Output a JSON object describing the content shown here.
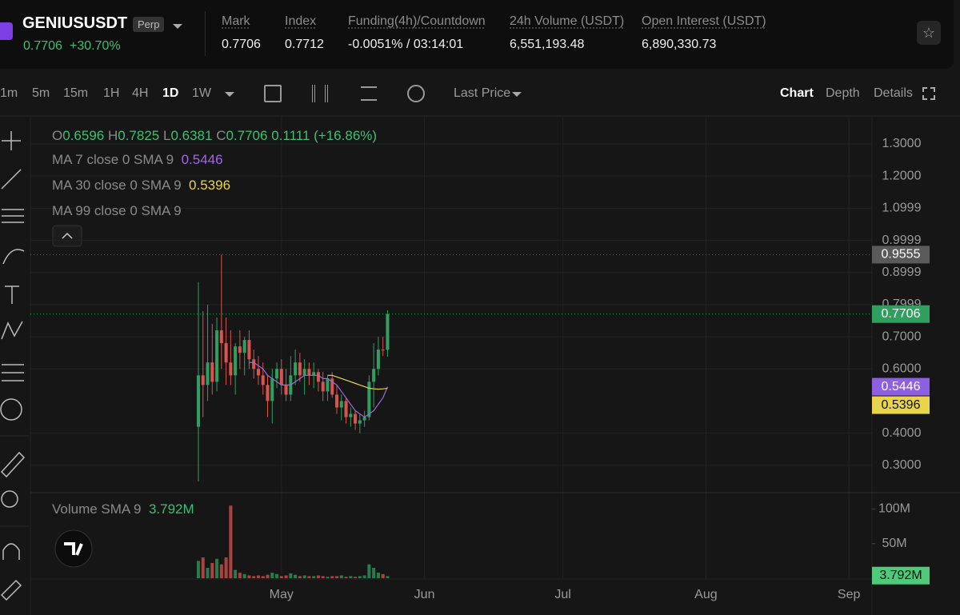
{
  "header": {
    "symbol": "GENIUSUSDT",
    "badge": "Perp",
    "price": "0.7706",
    "change": "+30.70%",
    "stats": [
      {
        "label": "Mark",
        "value": "0.7706"
      },
      {
        "label": "Index",
        "value": "0.7712"
      },
      {
        "label": "Funding(4h)/Countdown",
        "value": "-0.0051% / 03:14:01"
      },
      {
        "label": "24h Volume (USDT)",
        "value": "6,551,193.48"
      },
      {
        "label": "Open Interest (USDT)",
        "value": "6,890,330.73"
      }
    ]
  },
  "toolbar": {
    "intervals": [
      "1m",
      "5m",
      "15m",
      "1H",
      "4H",
      "1D",
      "1W"
    ],
    "price_type": "Last Price",
    "tabs": [
      "Chart",
      "Depth",
      "Details"
    ]
  },
  "legend": {
    "ohlc": [
      {
        "label": "O",
        "value": "0.6596"
      },
      {
        "label": "H",
        "value": "0.7825"
      },
      {
        "label": "L",
        "value": "0.6381"
      },
      {
        "label": "C",
        "value": "0.7706"
      }
    ],
    "change": "0.1111 (+16.86%)",
    "ma": [
      "MA 7 close 0 SMA 9",
      "MA 30 close 0 SMA 9",
      "MA 99 close 0 SMA 9"
    ],
    "volume": "Volume SMA 9"
  },
  "chart_data": {
    "type": "candlestick",
    "up_color": "#2f9e5f",
    "down_color": "#d9534f",
    "open": [
      0.42,
      0.58,
      0.55,
      0.62,
      0.56,
      0.72,
      0.68,
      0.62,
      0.58,
      0.67,
      0.65,
      0.69,
      0.63,
      0.6,
      0.58,
      0.55,
      0.5,
      0.57,
      0.6,
      0.55,
      0.52,
      0.58,
      0.62,
      0.58,
      0.6,
      0.58,
      0.59,
      0.56,
      0.53,
      0.57,
      0.52,
      0.48,
      0.5,
      0.45,
      0.46,
      0.43,
      0.44,
      0.45,
      0.56,
      0.6,
      0.66,
      0.6596
    ],
    "high": [
      0.87,
      0.78,
      0.8,
      0.74,
      0.76,
      0.9555,
      0.76,
      0.72,
      0.68,
      0.72,
      0.7,
      0.72,
      0.66,
      0.64,
      0.62,
      0.58,
      0.6,
      0.62,
      0.63,
      0.6,
      0.64,
      0.66,
      0.65,
      0.63,
      0.62,
      0.62,
      0.6,
      0.59,
      0.58,
      0.59,
      0.55,
      0.52,
      0.51,
      0.48,
      0.47,
      0.46,
      0.47,
      0.58,
      0.68,
      0.7,
      0.7,
      0.7825
    ],
    "low": [
      0.25,
      0.45,
      0.5,
      0.52,
      0.53,
      0.6,
      0.55,
      0.55,
      0.52,
      0.6,
      0.58,
      0.6,
      0.57,
      0.55,
      0.52,
      0.45,
      0.43,
      0.54,
      0.52,
      0.5,
      0.5,
      0.55,
      0.56,
      0.52,
      0.55,
      0.54,
      0.53,
      0.5,
      0.5,
      0.51,
      0.46,
      0.44,
      0.43,
      0.42,
      0.41,
      0.4,
      0.42,
      0.44,
      0.48,
      0.58,
      0.64,
      0.6381
    ],
    "close": [
      0.58,
      0.55,
      0.62,
      0.56,
      0.72,
      0.68,
      0.62,
      0.58,
      0.67,
      0.65,
      0.69,
      0.63,
      0.6,
      0.58,
      0.55,
      0.5,
      0.57,
      0.6,
      0.55,
      0.52,
      0.58,
      0.62,
      0.58,
      0.6,
      0.58,
      0.59,
      0.56,
      0.53,
      0.57,
      0.52,
      0.48,
      0.5,
      0.45,
      0.46,
      0.43,
      0.44,
      0.45,
      0.56,
      0.6,
      0.66,
      0.6596,
      0.7706
    ],
    "volume": [
      25000000,
      30000000,
      15000000,
      22000000,
      28000000,
      20000000,
      30000000,
      105000000,
      12000000,
      8000000,
      6000000,
      4000000,
      3000000,
      4000000,
      3000000,
      5000000,
      8000000,
      6000000,
      3000000,
      4000000,
      7000000,
      5000000,
      3000000,
      4000000,
      3000000,
      3000000,
      4000000,
      3000000,
      2000000,
      3000000,
      3000000,
      4000000,
      2000000,
      3000000,
      2000000,
      3000000,
      4000000,
      20000000,
      15000000,
      8000000,
      6000000,
      3000000
    ],
    "series": [
      {
        "name": "MA 7",
        "color": "#9b6bdf",
        "values": [
          null,
          null,
          null,
          null,
          null,
          null,
          null,
          null,
          null,
          null,
          null,
          0.62,
          0.62,
          0.61,
          0.6,
          0.58,
          0.57,
          0.56,
          0.55,
          0.55,
          0.55,
          0.56,
          0.57,
          0.58,
          0.58,
          0.58,
          0.58,
          0.57,
          0.57,
          0.56,
          0.55,
          0.53,
          0.51,
          0.49,
          0.47,
          0.46,
          0.45,
          0.46,
          0.47,
          0.49,
          0.51,
          0.5446
        ]
      },
      {
        "name": "MA 30",
        "color": "#e8d44d",
        "values": [
          null,
          null,
          null,
          null,
          null,
          null,
          null,
          null,
          null,
          null,
          null,
          null,
          null,
          null,
          null,
          null,
          null,
          null,
          null,
          null,
          null,
          null,
          null,
          null,
          null,
          null,
          null,
          null,
          0.58,
          0.58,
          0.575,
          0.57,
          0.565,
          0.56,
          0.555,
          0.55,
          0.545,
          0.54,
          0.538,
          0.537,
          0.538,
          0.5396
        ]
      }
    ],
    "price_lines": [
      {
        "value": 0.9555,
        "color": "#5a5a5a",
        "dotted": true
      },
      {
        "value": 0.7706,
        "color": "#2f9e5f",
        "dotted": true
      },
      {
        "value": 0.5446,
        "color": "#8e5fe0",
        "dotted": false
      },
      {
        "value": 0.5396,
        "color": "#e8d44d",
        "dotted": false
      }
    ],
    "xlim": [
      -43,
      146
    ],
    "xticks": [
      {
        "value": 18,
        "label": "May"
      },
      {
        "value": 49,
        "label": "Jun"
      },
      {
        "value": 79,
        "label": "Jul"
      },
      {
        "value": 110,
        "label": "Aug"
      },
      {
        "value": 141,
        "label": "Sep"
      }
    ],
    "ylim": [
      0.225,
      1.387
    ],
    "yticks": [
      {
        "value": 1.3,
        "label": "1.3000"
      },
      {
        "value": 1.2,
        "label": "1.2000"
      },
      {
        "value": 1.0999,
        "label": "1.0999"
      },
      {
        "value": 0.9999,
        "label": "0.9999"
      },
      {
        "value": 0.8999,
        "label": "0.8999"
      },
      {
        "value": 0.7999,
        "label": "0.7999"
      },
      {
        "value": 0.7,
        "label": "0.7000"
      },
      {
        "value": 0.6,
        "label": "0.6000"
      },
      {
        "value": 0.4,
        "label": "0.4000"
      },
      {
        "value": 0.3,
        "label": "0.3000"
      }
    ],
    "vol_ylim": [
      0,
      119000000
    ],
    "vol_yticks": [
      {
        "value": 100000000,
        "label": "100M"
      },
      {
        "value": 50000000,
        "label": "50M"
      }
    ],
    "vol_sma": {
      "value": 3792000,
      "label": "3.792M"
    },
    "grid": true
  }
}
